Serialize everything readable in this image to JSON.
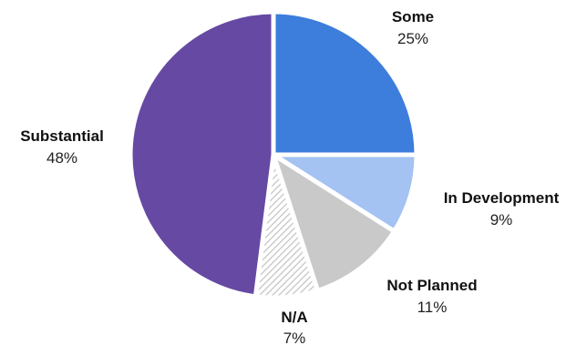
{
  "chart_data": {
    "type": "pie",
    "title": "",
    "start": "12 o'clock",
    "direction": "clockwise",
    "slices": [
      {
        "label": "Some",
        "value": 25,
        "value_label": "25%",
        "color": "#3D7DDB",
        "pattern": "none"
      },
      {
        "label": "In Development",
        "value": 9,
        "value_label": "9%",
        "color": "#A4C2F2",
        "pattern": "none"
      },
      {
        "label": "Not Planned",
        "value": 11,
        "value_label": "11%",
        "color": "#C9C9C9",
        "pattern": "none"
      },
      {
        "label": "N/A",
        "value": 7,
        "value_label": "7%",
        "color": "#CFCFCF",
        "pattern": "diagonal-hatch"
      },
      {
        "label": "Substantial",
        "value": 48,
        "value_label": "48%",
        "color": "#6549A3",
        "pattern": "none"
      }
    ]
  }
}
